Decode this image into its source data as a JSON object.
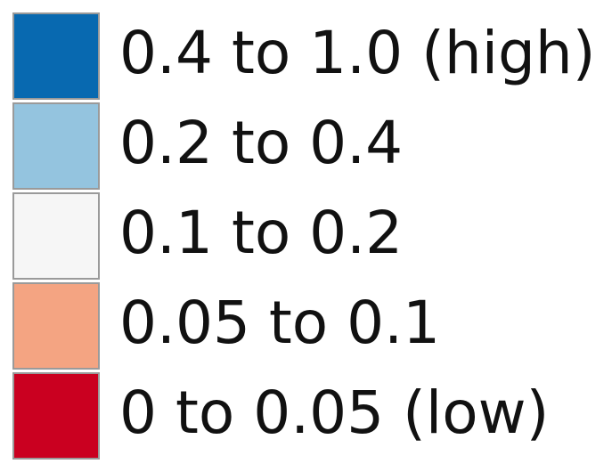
{
  "legend": {
    "items": [
      {
        "label": "0.4 to 1.0 (high)",
        "color": "#0869b0"
      },
      {
        "label": "0.2 to 0.4",
        "color": "#94c4df"
      },
      {
        "label": "0.1 to 0.2",
        "color": "#f6f6f6"
      },
      {
        "label": "0.05 to 0.1",
        "color": "#f4a482"
      },
      {
        "label": "0 to 0.05 (low)",
        "color": "#ca0020"
      }
    ]
  }
}
